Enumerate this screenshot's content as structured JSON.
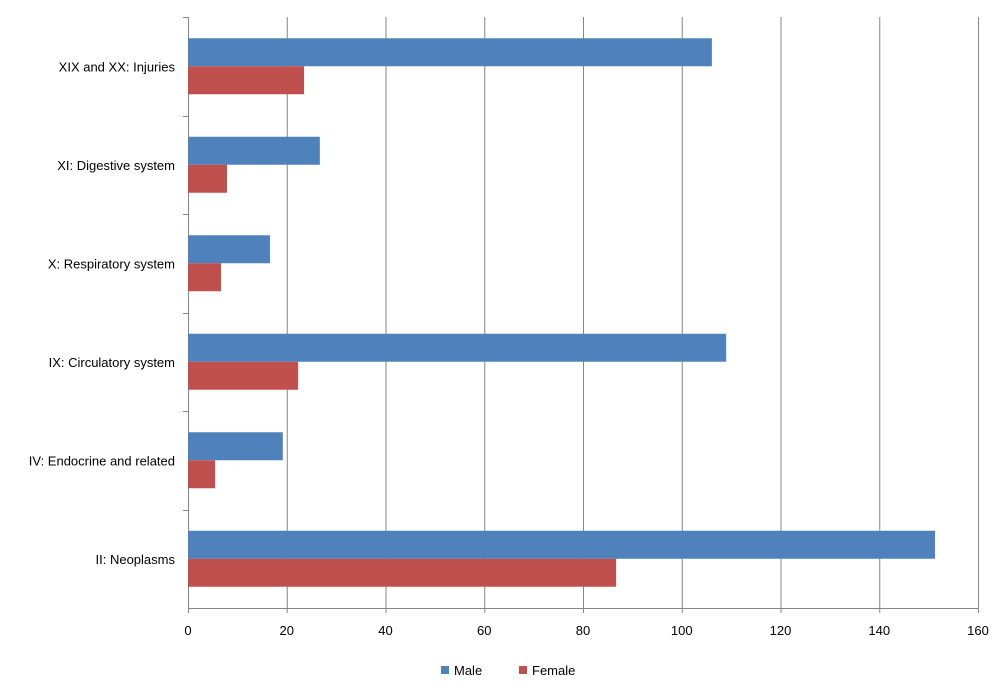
{
  "chart_data": {
    "type": "bar",
    "orientation": "horizontal",
    "categories": [
      "XIX and XX: Injuries",
      "XI: Digestive system",
      "X: Respiratory system",
      "IX: Circulatory system",
      "IV: Endocrine and related",
      "II: Neoplasms"
    ],
    "series": [
      {
        "name": "Male",
        "color": "#4F81BD",
        "values": [
          106.1,
          26.7,
          16.6,
          109.0,
          19.2,
          151.3
        ]
      },
      {
        "name": "Female",
        "color": "#C0504D",
        "values": [
          23.5,
          7.9,
          6.7,
          22.3,
          5.5,
          86.7
        ]
      }
    ],
    "xlim": [
      0,
      160
    ],
    "xticks": [
      0,
      20,
      40,
      60,
      80,
      100,
      120,
      140,
      160
    ],
    "grid": true,
    "legend": "bottom",
    "title": "",
    "xlabel": "",
    "ylabel": ""
  }
}
